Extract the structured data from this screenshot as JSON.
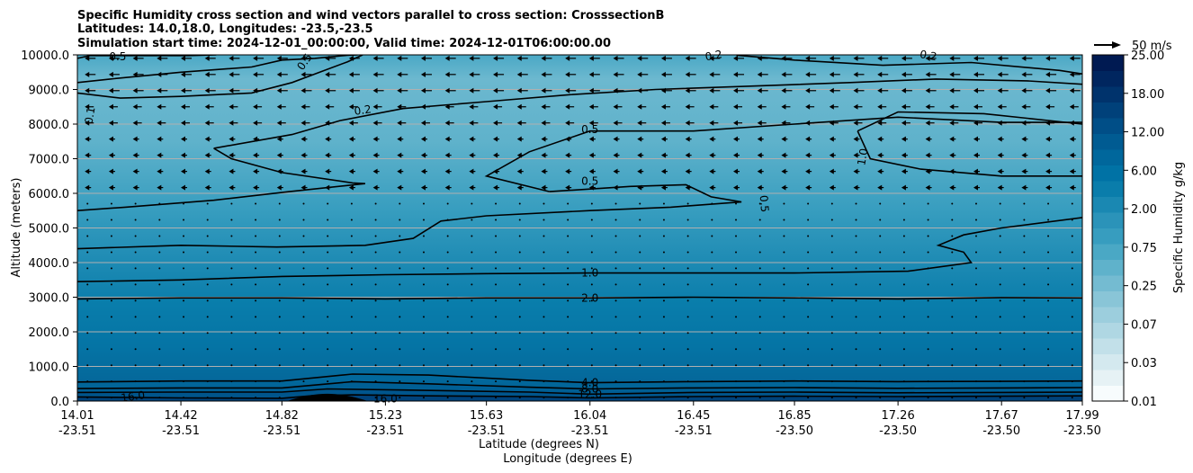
{
  "chart_data": {
    "type": "heatmap",
    "title_lines": [
      "Specific Humidity cross section and wind vectors parallel to cross section: CrosssectionB",
      "Latitudes: 14.0,18.0, Longitudes: -23.5,-23.5",
      "Simulation start time: 2024-12-01_00:00:00, Valid time: 2024-12-01T06:00:00.00"
    ],
    "ylabel": "Altitude (meters)",
    "xlabel_lat": "Latitude (degrees N)",
    "xlabel_lon": "Longitude (degrees E)",
    "ylim": [
      0,
      10000
    ],
    "yticks": [
      "0.0",
      "1000.0",
      "2000.0",
      "3000.0",
      "4000.0",
      "5000.0",
      "6000.0",
      "7000.0",
      "8000.0",
      "9000.0",
      "10000.0"
    ],
    "xticks": [
      {
        "lat": "14.01",
        "lon": "-23.51"
      },
      {
        "lat": "14.42",
        "lon": "-23.51"
      },
      {
        "lat": "14.82",
        "lon": "-23.51"
      },
      {
        "lat": "15.23",
        "lon": "-23.51"
      },
      {
        "lat": "15.63",
        "lon": "-23.51"
      },
      {
        "lat": "16.04",
        "lon": "-23.51"
      },
      {
        "lat": "16.45",
        "lon": "-23.51"
      },
      {
        "lat": "16.85",
        "lon": "-23.50"
      },
      {
        "lat": "17.26",
        "lon": "-23.50"
      },
      {
        "lat": "17.67",
        "lon": "-23.50"
      },
      {
        "lat": "17.99",
        "lon": "-23.50"
      }
    ],
    "grid": "horizontal",
    "colorbar": {
      "label": "Specific Humidity g/kg",
      "tick_labels": [
        "0.01",
        "0.03",
        "0.07",
        "0.25",
        "0.75",
        "2.00",
        "6.00",
        "12.00",
        "18.00",
        "25.00"
      ],
      "colors": [
        "#f7fcfd",
        "#e6f2f5",
        "#d4e9ef",
        "#c2e0e9",
        "#afd7e3",
        "#9ccedd",
        "#89c5d7",
        "#74bbd1",
        "#5fb2cb",
        "#4aa8c5",
        "#379dbf",
        "#2b93b9",
        "#1a88b2",
        "#0a7dab",
        "#0072a5",
        "#00679c",
        "#005b92",
        "#004e87",
        "#00417a",
        "#00336c",
        "#00265f",
        "#001a52"
      ]
    },
    "quiver_key": {
      "label": "50 m/s",
      "value": 50
    },
    "contour_labels": [
      {
        "text": "0.1",
        "lat": 14.06,
        "alt": 8250,
        "rotate": -80
      },
      {
        "text": "0.5",
        "lat": 14.17,
        "alt": 9950,
        "rotate": 0
      },
      {
        "text": "0.5",
        "lat": 14.91,
        "alt": 9800,
        "rotate": -55
      },
      {
        "text": "0.2",
        "lat": 15.14,
        "alt": 8400,
        "rotate": -8
      },
      {
        "text": "0.5",
        "lat": 16.04,
        "alt": 7850,
        "rotate": 0
      },
      {
        "text": "0.5",
        "lat": 16.04,
        "alt": 6350,
        "rotate": 0
      },
      {
        "text": "0.5",
        "lat": 16.73,
        "alt": 5700,
        "rotate": 85
      },
      {
        "text": "1.0",
        "lat": 17.12,
        "alt": 7050,
        "rotate": -80
      },
      {
        "text": "0.2",
        "lat": 16.53,
        "alt": 9980,
        "rotate": -10
      },
      {
        "text": "0.2",
        "lat": 17.38,
        "alt": 9980,
        "rotate": 10
      },
      {
        "text": "1.0",
        "lat": 16.04,
        "alt": 3700,
        "rotate": 0
      },
      {
        "text": "2.0",
        "lat": 16.04,
        "alt": 2980,
        "rotate": 0
      },
      {
        "text": "4.0",
        "lat": 16.04,
        "alt": 530,
        "rotate": 0
      },
      {
        "text": "8.0",
        "lat": 16.04,
        "alt": 350,
        "rotate": 0
      },
      {
        "text": "12.0",
        "lat": 16.04,
        "alt": 200,
        "rotate": 0
      },
      {
        "text": "16.0",
        "lat": 14.23,
        "alt": 130,
        "rotate": -8
      },
      {
        "text": "16.0",
        "lat": 15.23,
        "alt": 70,
        "rotate": 0
      }
    ],
    "contours": [
      {
        "level": 0.5,
        "points": [
          [
            14.01,
            9900
          ],
          [
            14.06,
            9980
          ],
          [
            14.45,
            9980
          ],
          [
            14.56,
            10000
          ]
        ]
      },
      {
        "level": 0.5,
        "points": [
          [
            14.01,
            9200
          ],
          [
            14.14,
            9300
          ],
          [
            14.42,
            9500
          ],
          [
            14.7,
            9650
          ],
          [
            14.82,
            9850
          ],
          [
            14.95,
            9900
          ],
          [
            15.08,
            9990
          ],
          [
            15.12,
            10000
          ]
        ]
      },
      {
        "level": 0.1,
        "points": [
          [
            14.01,
            8900
          ],
          [
            14.18,
            8750
          ],
          [
            14.42,
            8800
          ],
          [
            14.7,
            8900
          ],
          [
            14.86,
            9200
          ],
          [
            14.97,
            9500
          ],
          [
            15.08,
            9800
          ],
          [
            15.14,
            10000
          ]
        ]
      },
      {
        "level": 0.2,
        "points": [
          [
            14.55,
            7300
          ],
          [
            14.86,
            7700
          ],
          [
            15.05,
            8100
          ],
          [
            15.3,
            8450
          ],
          [
            15.63,
            8650
          ],
          [
            15.96,
            8850
          ],
          [
            16.3,
            9000
          ],
          [
            16.7,
            9100
          ],
          [
            17.07,
            9200
          ],
          [
            17.41,
            9300
          ],
          [
            17.77,
            9250
          ],
          [
            17.99,
            9150
          ]
        ]
      },
      {
        "level": 0.2,
        "points": [
          [
            14.55,
            7300
          ],
          [
            14.62,
            7000
          ],
          [
            14.82,
            6600
          ],
          [
            15.1,
            6300
          ],
          [
            15.15,
            6280
          ],
          [
            14.85,
            6050
          ],
          [
            14.55,
            5800
          ],
          [
            14.2,
            5600
          ],
          [
            14.01,
            5500
          ]
        ]
      },
      {
        "level": 0.2,
        "points": [
          [
            16.62,
            9990
          ],
          [
            16.85,
            9850
          ],
          [
            17.2,
            9700
          ],
          [
            17.55,
            9780
          ],
          [
            17.9,
            9550
          ],
          [
            17.99,
            9450
          ]
        ]
      },
      {
        "level": 0.5,
        "points": [
          [
            15.88,
            6050
          ],
          [
            16.2,
            6200
          ],
          [
            16.42,
            6250
          ],
          [
            16.52,
            5900
          ],
          [
            16.64,
            5750
          ],
          [
            16.36,
            5600
          ],
          [
            16.04,
            5500
          ],
          [
            15.63,
            5350
          ],
          [
            15.45,
            5200
          ],
          [
            15.34,
            4700
          ],
          [
            15.15,
            4500
          ],
          [
            14.8,
            4450
          ],
          [
            14.42,
            4500
          ],
          [
            14.01,
            4400
          ]
        ]
      },
      {
        "level": 0.5,
        "points": [
          [
            15.88,
            6050
          ],
          [
            15.63,
            6500
          ],
          [
            15.8,
            7200
          ],
          [
            16.04,
            7800
          ],
          [
            16.45,
            7800
          ],
          [
            16.85,
            8000
          ],
          [
            17.26,
            8200
          ],
          [
            17.67,
            8050
          ],
          [
            17.99,
            8050
          ]
        ]
      },
      {
        "level": 1.0,
        "points": [
          [
            17.1,
            7800
          ],
          [
            17.26,
            8350
          ],
          [
            17.6,
            8300
          ],
          [
            17.99,
            8000
          ]
        ]
      },
      {
        "level": 1.0,
        "points": [
          [
            17.1,
            7800
          ],
          [
            17.15,
            7000
          ],
          [
            17.35,
            6700
          ],
          [
            17.67,
            6500
          ],
          [
            17.99,
            6500
          ]
        ]
      },
      {
        "level": 1.0,
        "points": [
          [
            17.99,
            5300
          ],
          [
            17.67,
            5000
          ],
          [
            17.52,
            4800
          ],
          [
            17.42,
            4500
          ],
          [
            17.52,
            4300
          ],
          [
            17.55,
            4000
          ],
          [
            17.3,
            3750
          ],
          [
            16.85,
            3700
          ],
          [
            16.45,
            3700
          ],
          [
            16.04,
            3700
          ],
          [
            15.63,
            3680
          ],
          [
            15.23,
            3650
          ],
          [
            14.82,
            3600
          ],
          [
            14.42,
            3500
          ],
          [
            14.01,
            3450
          ]
        ]
      },
      {
        "level": 2.0,
        "points": [
          [
            14.01,
            2950
          ],
          [
            14.42,
            2980
          ],
          [
            14.82,
            2980
          ],
          [
            15.23,
            2950
          ],
          [
            15.63,
            2980
          ],
          [
            16.04,
            2980
          ],
          [
            16.45,
            3000
          ],
          [
            16.85,
            2980
          ],
          [
            17.26,
            2950
          ],
          [
            17.67,
            2990
          ],
          [
            17.99,
            2980
          ]
        ]
      },
      {
        "level": 4.0,
        "points": [
          [
            14.01,
            550
          ],
          [
            14.42,
            580
          ],
          [
            14.82,
            580
          ],
          [
            15.1,
            780
          ],
          [
            15.4,
            750
          ],
          [
            15.8,
            600
          ],
          [
            16.04,
            530
          ],
          [
            16.45,
            560
          ],
          [
            16.85,
            580
          ],
          [
            17.26,
            560
          ],
          [
            17.67,
            570
          ],
          [
            17.99,
            580
          ]
        ]
      },
      {
        "level": 8.0,
        "points": [
          [
            14.01,
            360
          ],
          [
            14.42,
            380
          ],
          [
            14.82,
            380
          ],
          [
            15.1,
            560
          ],
          [
            15.4,
            500
          ],
          [
            15.8,
            400
          ],
          [
            16.04,
            350
          ],
          [
            16.45,
            380
          ],
          [
            16.85,
            390
          ],
          [
            17.26,
            370
          ],
          [
            17.67,
            380
          ],
          [
            17.99,
            390
          ]
        ]
      },
      {
        "level": 12.0,
        "points": [
          [
            14.01,
            250
          ],
          [
            14.42,
            260
          ],
          [
            14.82,
            260
          ],
          [
            15.0,
            350
          ],
          [
            15.3,
            320
          ],
          [
            15.8,
            260
          ],
          [
            16.04,
            200
          ],
          [
            16.45,
            250
          ],
          [
            16.85,
            260
          ],
          [
            17.26,
            240
          ],
          [
            17.67,
            250
          ],
          [
            17.99,
            260
          ]
        ]
      },
      {
        "level": 16.0,
        "points": [
          [
            14.01,
            120
          ],
          [
            14.42,
            90
          ],
          [
            14.82,
            80
          ],
          [
            14.95,
            160
          ],
          [
            15.1,
            180
          ],
          [
            15.4,
            150
          ],
          [
            15.8,
            130
          ],
          [
            16.04,
            90
          ],
          [
            16.45,
            130
          ],
          [
            16.85,
            140
          ],
          [
            17.26,
            130
          ],
          [
            17.67,
            140
          ],
          [
            17.99,
            150
          ]
        ]
      }
    ],
    "terrain_peak": {
      "lat": 15.0,
      "alt": 210
    }
  }
}
